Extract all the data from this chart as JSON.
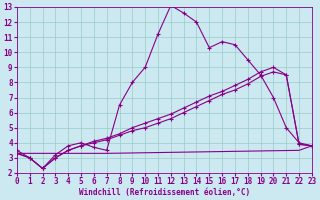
{
  "xlabel": "Windchill (Refroidissement éolien,°C)",
  "bg_color": "#cce8f0",
  "grid_color": "#99ccc8",
  "line_color": "#880088",
  "xlim": [
    0,
    23
  ],
  "ylim": [
    2,
    13
  ],
  "xticks": [
    0,
    1,
    2,
    3,
    4,
    5,
    6,
    7,
    8,
    9,
    10,
    11,
    12,
    13,
    14,
    15,
    16,
    17,
    18,
    19,
    20,
    21,
    22,
    23
  ],
  "yticks": [
    2,
    3,
    4,
    5,
    6,
    7,
    8,
    9,
    10,
    11,
    12,
    13
  ],
  "line1_x": [
    0,
    1,
    2,
    3,
    4,
    5,
    6,
    7,
    8,
    9,
    10,
    11,
    12,
    13,
    14,
    15,
    16,
    17,
    18,
    19,
    20,
    21,
    22,
    23
  ],
  "line1_y": [
    3.5,
    3.0,
    2.3,
    3.2,
    3.8,
    4.0,
    3.7,
    3.5,
    6.5,
    8.0,
    9.0,
    11.2,
    13.1,
    12.6,
    12.0,
    10.3,
    10.7,
    10.5,
    9.5,
    8.5,
    7.0,
    5.0,
    4.0,
    3.8
  ],
  "line2_x": [
    0,
    1,
    2,
    3,
    4,
    5,
    6,
    7,
    8,
    9,
    10,
    11,
    12,
    13,
    14,
    15,
    16,
    17,
    18,
    19,
    20,
    21,
    22,
    23
  ],
  "line2_y": [
    3.3,
    3.0,
    2.3,
    3.0,
    3.5,
    3.8,
    4.0,
    4.2,
    4.5,
    4.8,
    5.0,
    5.3,
    5.6,
    6.0,
    6.4,
    6.8,
    7.2,
    7.5,
    7.9,
    8.4,
    8.7,
    8.5,
    3.9,
    3.8
  ],
  "line3_x": [
    0,
    1,
    2,
    3,
    4,
    5,
    6,
    7,
    8,
    9,
    10,
    11,
    12,
    13,
    14,
    15,
    16,
    17,
    18,
    19,
    20,
    21,
    22,
    23
  ],
  "line3_y": [
    3.3,
    3.0,
    2.3,
    3.0,
    3.5,
    3.8,
    4.1,
    4.3,
    4.6,
    5.0,
    5.3,
    5.6,
    5.9,
    6.3,
    6.7,
    7.1,
    7.4,
    7.8,
    8.2,
    8.7,
    9.0,
    8.5,
    3.9,
    3.8
  ],
  "line4_x": [
    0,
    7,
    22,
    23
  ],
  "line4_y": [
    3.3,
    3.3,
    3.5,
    3.8
  ],
  "tick_fontsize": 5.5,
  "xlabel_fontsize": 5.5
}
